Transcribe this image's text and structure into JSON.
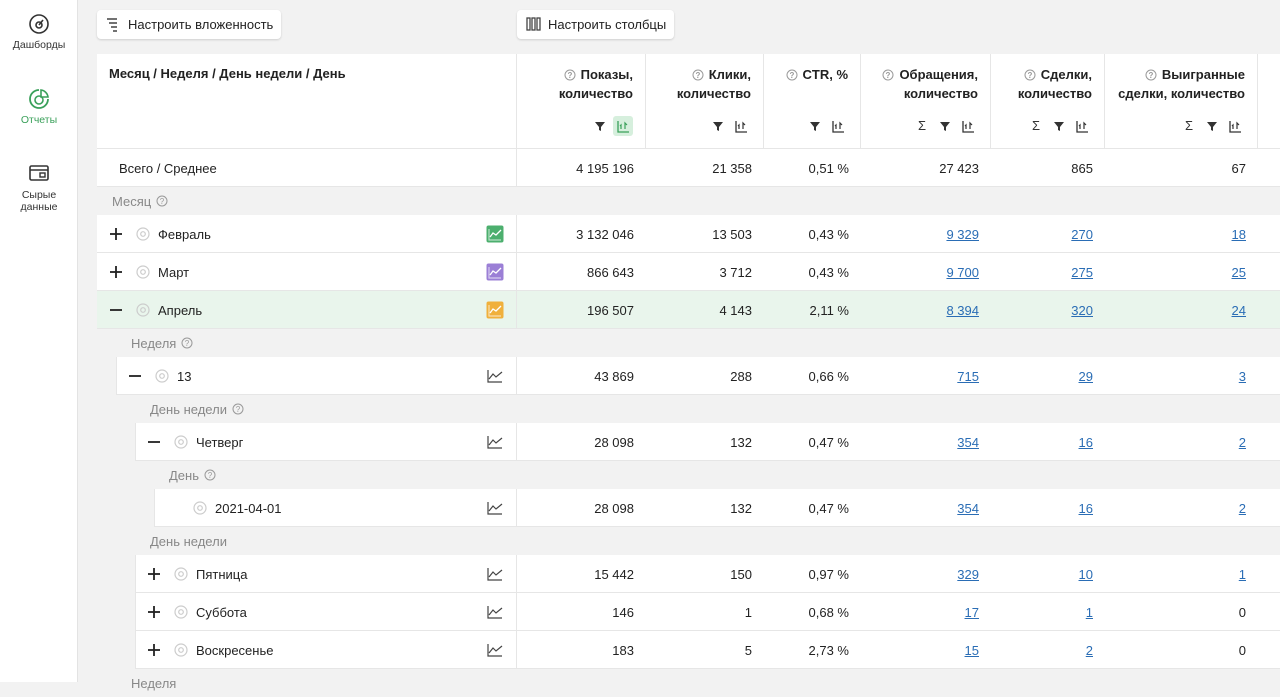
{
  "sidebar": [
    {
      "label": "Дашборды"
    },
    {
      "label": "Отчеты",
      "active": true
    },
    {
      "label": "Сырые данные"
    }
  ],
  "toolbar": [
    "Настроить вложенность",
    "Настроить столбцы"
  ],
  "table": {
    "title": "Месяц / Неделя / День недели / День",
    "columns": [
      {
        "lines": [
          "Показы,",
          "количество"
        ],
        "sum": false,
        "chart_active": true,
        "link": false
      },
      {
        "lines": [
          "Клики,",
          "количество"
        ],
        "sum": false,
        "link": false
      },
      {
        "lines": [
          "CTR, %"
        ],
        "sum": false,
        "link": false
      },
      {
        "lines": [
          "Обращения,",
          "количество"
        ],
        "sum": true,
        "link": true
      },
      {
        "lines": [
          "Сделки,",
          "количество"
        ],
        "sum": true,
        "link": true
      },
      {
        "lines": [
          "Выигранные",
          "сделки, количество"
        ],
        "sum": true,
        "link": true
      }
    ],
    "total": {
      "label": "Всего / Среднее",
      "values": [
        "4 195 196",
        "21 358",
        "0,51 %",
        "27 423",
        "865",
        "67"
      ]
    },
    "sections": [
      {
        "label": "Месяц",
        "help": true,
        "rows": [
          {
            "name": "Февраль",
            "chart_color": "#4caf6e",
            "values": [
              "3 132 046",
              "13 503",
              "0,43 %",
              "9 329",
              "270",
              "18"
            ]
          },
          {
            "name": "Март",
            "chart_color": "#9b7fd6",
            "values": [
              "866 643",
              "3 712",
              "0,43 %",
              "9 700",
              "275",
              "25"
            ]
          },
          {
            "name": "Апрель",
            "chart_color": "#f0b03c",
            "highlight": true,
            "values": [
              "196 507",
              "4 143",
              "2,11 %",
              "8 394",
              "320",
              "24"
            ],
            "sections": [
              {
                "label": "Неделя",
                "help": true,
                "rows": [
                  {
                    "name": "13",
                    "values": [
                      "43 869",
                      "288",
                      "0,66 %",
                      "715",
                      "29",
                      "3"
                    ],
                    "sections": [
                      {
                        "label": "День недели",
                        "help": true,
                        "rows": [
                          {
                            "name": "Четверг",
                            "values": [
                              "28 098",
                              "132",
                              "0,47 %",
                              "354",
                              "16",
                              "2"
                            ],
                            "sections": [
                              {
                                "label": "День",
                                "help": true,
                                "rows": [
                                  {
                                    "name": "2021-04-01",
                                    "values": [
                                      "28 098",
                                      "132",
                                      "0,47 %",
                                      "354",
                                      "16",
                                      "2"
                                    ]
                                  }
                                ]
                              }
                            ]
                          }
                        ]
                      },
                      {
                        "label": "День недели",
                        "rows": [
                          {
                            "name": "Пятница",
                            "values": [
                              "15 442",
                              "150",
                              "0,97 %",
                              "329",
                              "10",
                              "1"
                            ]
                          },
                          {
                            "name": "Суббота",
                            "values": [
                              "146",
                              "1",
                              "0,68 %",
                              "17",
                              "1",
                              "0"
                            ]
                          },
                          {
                            "name": "Воскресенье",
                            "values": [
                              "183",
                              "5",
                              "2,73 %",
                              "15",
                              "2",
                              "0"
                            ]
                          }
                        ]
                      }
                    ]
                  }
                ]
              },
              {
                "label": "Неделя",
                "rows": []
              }
            ]
          }
        ]
      }
    ]
  }
}
